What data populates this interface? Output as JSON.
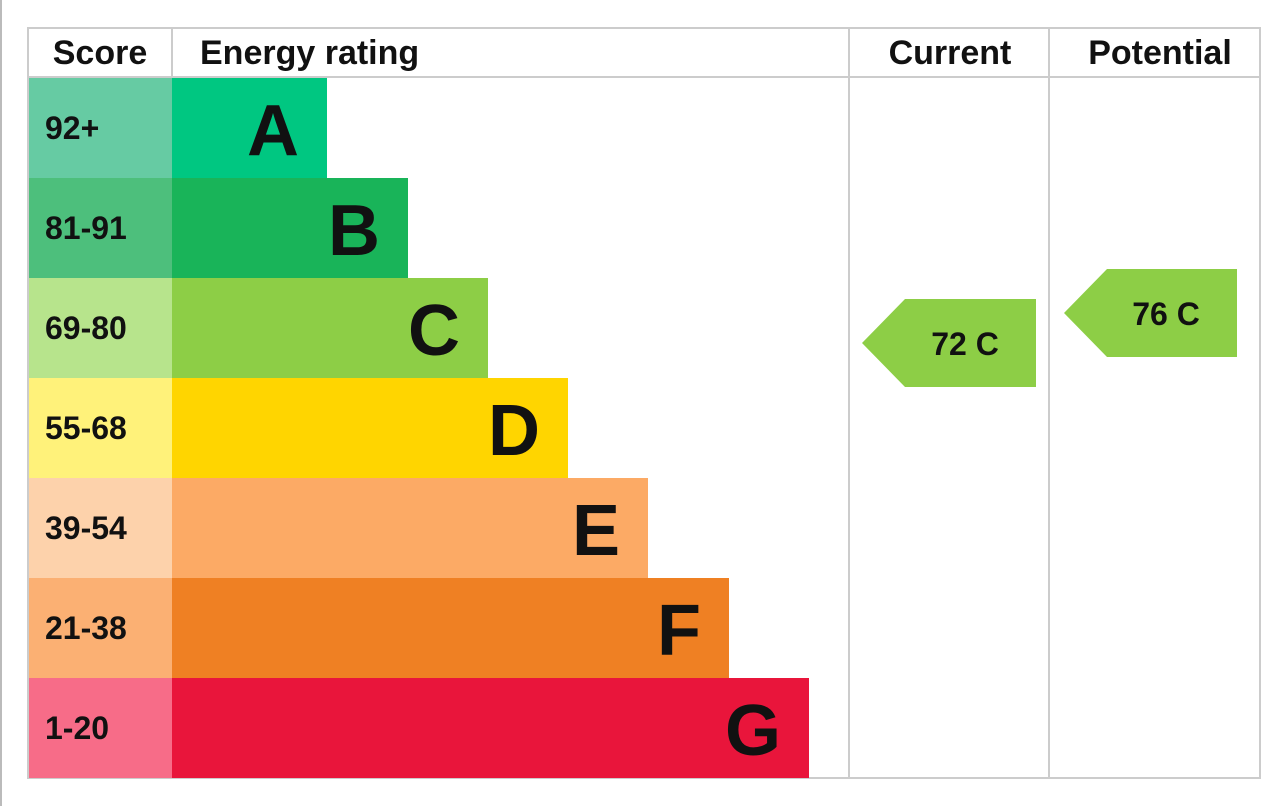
{
  "header": {
    "score": "Score",
    "rating": "Energy rating",
    "current": "Current",
    "potential": "Potential"
  },
  "bands": [
    {
      "score": "92+",
      "letter": "A"
    },
    {
      "score": "81-91",
      "letter": "B"
    },
    {
      "score": "69-80",
      "letter": "C"
    },
    {
      "score": "55-68",
      "letter": "D"
    },
    {
      "score": "39-54",
      "letter": "E"
    },
    {
      "score": "21-38",
      "letter": "F"
    },
    {
      "score": "1-20",
      "letter": "G"
    }
  ],
  "current": {
    "label": "72 C"
  },
  "potential": {
    "label": "76 C"
  }
}
